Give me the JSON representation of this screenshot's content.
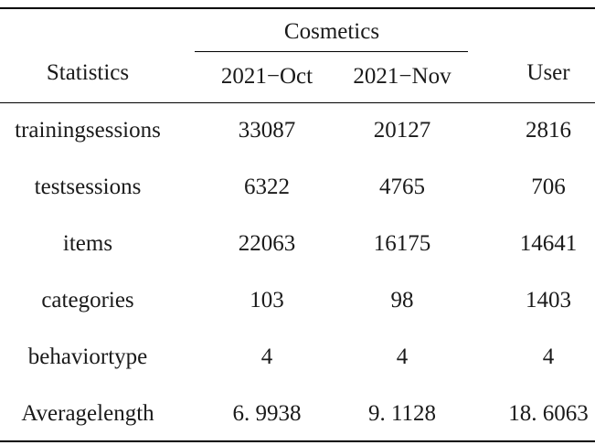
{
  "table": {
    "group_header": "Cosmetics",
    "columns": [
      "Statistics",
      "2021−Oct",
      "2021−Nov",
      "User"
    ],
    "rows": [
      {
        "label": "trainingsessions",
        "oct": "33087",
        "nov": "20127",
        "user": "2816"
      },
      {
        "label": "testsessions",
        "oct": "6322",
        "nov": "4765",
        "user": "706"
      },
      {
        "label": "items",
        "oct": "22063",
        "nov": "16175",
        "user": "14641"
      },
      {
        "label": "categories",
        "oct": "103",
        "nov": "98",
        "user": "1403"
      },
      {
        "label": "behaviortype",
        "oct": "4",
        "nov": "4",
        "user": "4"
      },
      {
        "label": "Averagelength",
        "oct": "6. 9938",
        "nov": "9. 1128",
        "user": "18. 6063"
      }
    ]
  }
}
